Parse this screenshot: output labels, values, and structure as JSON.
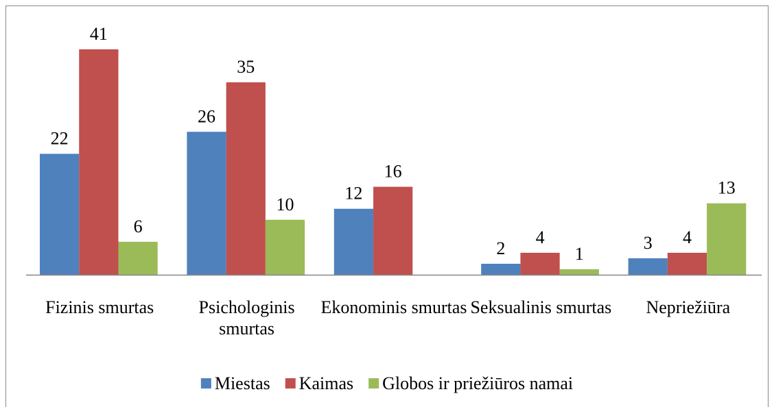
{
  "chart_data": {
    "type": "bar",
    "categories": [
      "Fizinis smurtas",
      "Psichologinis smurtas",
      "Ekonominis smurtas",
      "Seksualinis smurtas",
      "Nepriežiūra"
    ],
    "series": [
      {
        "name": "Miestas",
        "color": "#4f81bd",
        "values": [
          22,
          26,
          12,
          2,
          3
        ]
      },
      {
        "name": "Kaimas",
        "color": "#c0504d",
        "values": [
          41,
          35,
          16,
          4,
          4
        ]
      },
      {
        "name": "Globos ir priežiūros namai",
        "color": "#9bbb59",
        "values": [
          6,
          10,
          null,
          1,
          13
        ]
      }
    ],
    "legend": "bottom"
  }
}
